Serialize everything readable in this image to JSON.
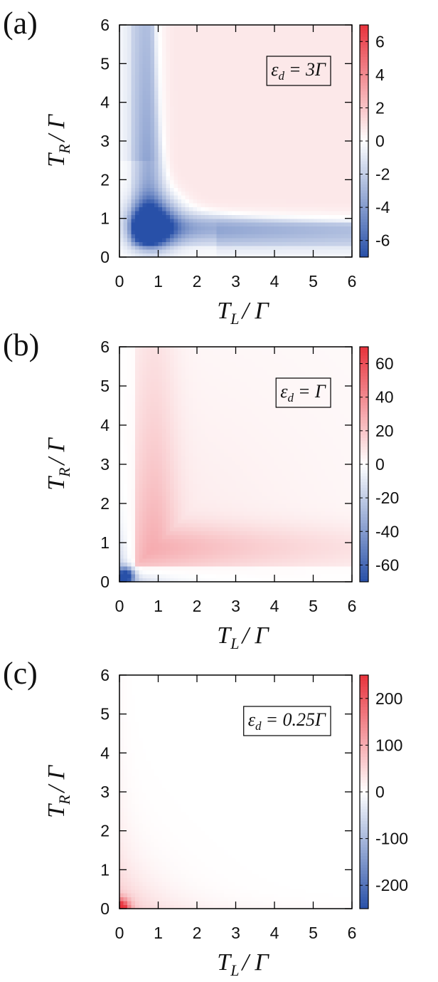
{
  "chart_data": [
    {
      "type": "heatmap",
      "panel_label": "(a)",
      "annotation": "ε_d = 3Γ",
      "annotation_parts": {
        "symbol": "ε",
        "sub": "d",
        "rhs": "= 3Γ"
      },
      "xlabel": "T_L / Γ",
      "ylabel": "T_R / Γ",
      "xlabel_parts": {
        "sym": "T",
        "sub": "L",
        "rest": "/ Γ"
      },
      "ylabel_parts": {
        "sym": "T",
        "sub": "R",
        "rest": "/ Γ"
      },
      "xlim": [
        0,
        6
      ],
      "ylim": [
        0,
        6
      ],
      "xticks": [
        "0",
        "1",
        "2",
        "3",
        "4",
        "5",
        "6"
      ],
      "yticks": [
        "0",
        "1",
        "2",
        "3",
        "4",
        "5",
        "6"
      ],
      "colorbar": {
        "min": -7,
        "max": 7,
        "ticks": [
          -6,
          -4,
          -2,
          0,
          2,
          4,
          6
        ],
        "tick_labels": [
          "-6",
          "-4",
          "-2",
          "0",
          "2",
          "4",
          "6"
        ],
        "low_color": "#2850a8",
        "mid_color": "#ffffff",
        "high_color": "#e8323c"
      },
      "features": [
        {
          "kind": "minimum",
          "x": 0.85,
          "y": 0.85,
          "value": -6.5
        },
        {
          "kind": "plateau",
          "region": "T_L > 1.5 and T_R > 1.5",
          "value": 0.8
        },
        {
          "kind": "zero-contour",
          "description": "hyperbola-like boundary near (T_L - 0.8)(T_R - 0.8) ≈ 0.5"
        }
      ]
    },
    {
      "type": "heatmap",
      "panel_label": "(b)",
      "annotation": "ε_d = Γ",
      "annotation_parts": {
        "symbol": "ε",
        "sub": "d",
        "rhs": "= Γ"
      },
      "xlabel": "T_L / Γ",
      "ylabel": "T_R / Γ",
      "xlabel_parts": {
        "sym": "T",
        "sub": "L",
        "rest": "/ Γ"
      },
      "ylabel_parts": {
        "sym": "T",
        "sub": "R",
        "rest": "/ Γ"
      },
      "xlim": [
        0,
        6
      ],
      "ylim": [
        0,
        6
      ],
      "xticks": [
        "0",
        "1",
        "2",
        "3",
        "4",
        "5",
        "6"
      ],
      "yticks": [
        "0",
        "1",
        "2",
        "3",
        "4",
        "5",
        "6"
      ],
      "colorbar": {
        "min": -70,
        "max": 70,
        "ticks": [
          -60,
          -40,
          -20,
          0,
          20,
          40,
          60
        ],
        "tick_labels": [
          "-60",
          "-40",
          "-20",
          "0",
          "20",
          "40",
          "60"
        ],
        "low_color": "#2850a8",
        "mid_color": "#ffffff",
        "high_color": "#e8323c"
      },
      "features": [
        {
          "kind": "minimum",
          "x": 0.2,
          "y": 0.2,
          "value": -65
        },
        {
          "kind": "maximum-ridge",
          "x": 0.9,
          "y": 0.9,
          "value": 18
        }
      ]
    },
    {
      "type": "heatmap",
      "panel_label": "(c)",
      "annotation": "ε_d = 0.25Γ",
      "annotation_parts": {
        "symbol": "ε",
        "sub": "d",
        "rhs": "= 0.25Γ"
      },
      "xlabel": "T_L / Γ",
      "ylabel": "T_R / Γ",
      "xlabel_parts": {
        "sym": "T",
        "sub": "L",
        "rest": "/ Γ"
      },
      "ylabel_parts": {
        "sym": "T",
        "sub": "R",
        "rest": "/ Γ"
      },
      "xlim": [
        0,
        6
      ],
      "ylim": [
        0,
        6
      ],
      "xticks": [
        "0",
        "1",
        "2",
        "3",
        "4",
        "5",
        "6"
      ],
      "yticks": [
        "0",
        "1",
        "2",
        "3",
        "4",
        "5",
        "6"
      ],
      "colorbar": {
        "min": -250,
        "max": 250,
        "ticks": [
          -200,
          -100,
          0,
          100,
          200
        ],
        "tick_labels": [
          "-200",
          "-100",
          "0",
          "100",
          "200"
        ],
        "low_color": "#2850a8",
        "mid_color": "#ffffff",
        "high_color": "#e8323c"
      },
      "features": [
        {
          "kind": "maximum",
          "x": 0.1,
          "y": 0.1,
          "value": 240
        }
      ]
    }
  ]
}
